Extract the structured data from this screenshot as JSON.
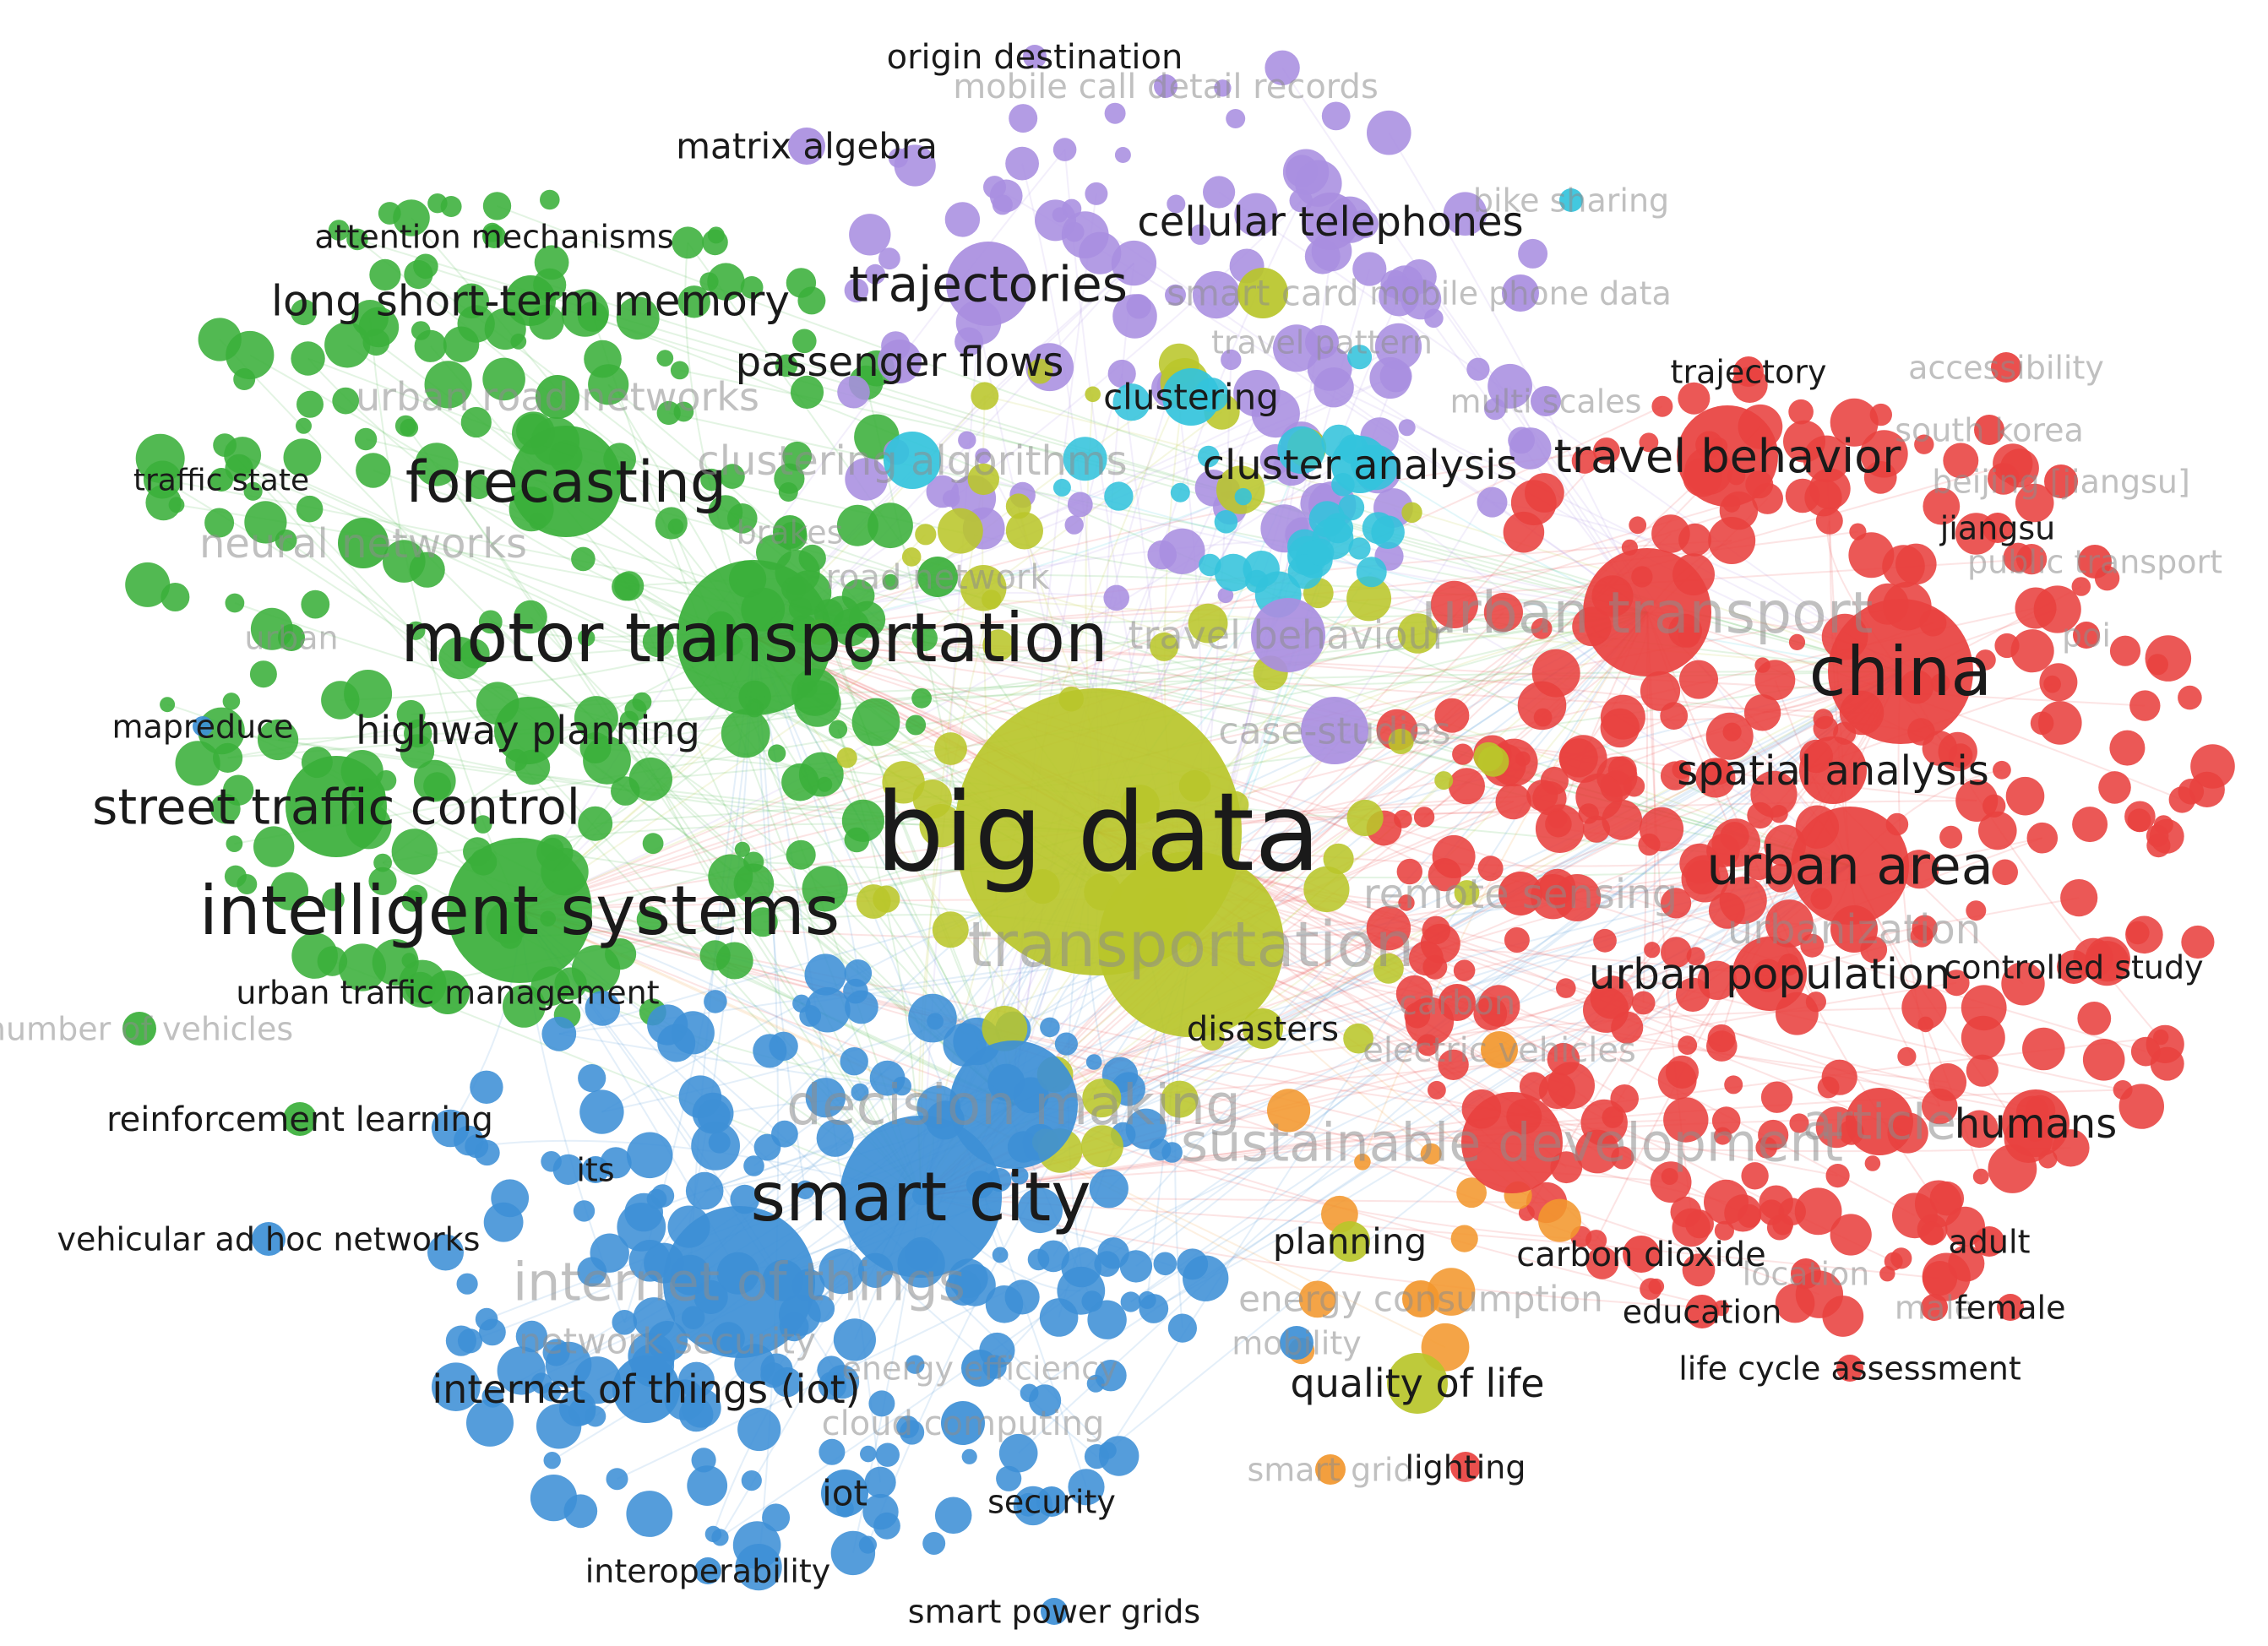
{
  "colors": {
    "green": "#3aaf3a",
    "red": "#e8413f",
    "blue": "#3d8fd6",
    "yellow": "#b9c62a",
    "purple": "#a98ee0",
    "cyan": "#33c3dc",
    "orange": "#f2972e"
  },
  "labels": [
    {
      "text": "origin destination",
      "cluster": "purple",
      "w": 2,
      "dim": false
    },
    {
      "text": "mobile call detail records",
      "cluster": "purple",
      "w": 2,
      "dim": true
    },
    {
      "text": "matrix algebra",
      "cluster": "purple",
      "w": 2,
      "dim": false
    },
    {
      "text": "attention mechanisms",
      "cluster": "green",
      "w": 2,
      "dim": false
    },
    {
      "text": "cellular telephones",
      "cluster": "purple",
      "w": 3,
      "dim": false
    },
    {
      "text": "bike sharing",
      "cluster": "cyan",
      "w": 2,
      "dim": true
    },
    {
      "text": "long short-term memory",
      "cluster": "green",
      "w": 3,
      "dim": false
    },
    {
      "text": "trajectories",
      "cluster": "purple",
      "w": 4,
      "dim": false
    },
    {
      "text": "smart card",
      "cluster": "yellow",
      "w": 2,
      "dim": true
    },
    {
      "text": "mobile phone data",
      "cluster": "purple",
      "w": 2,
      "dim": true
    },
    {
      "text": "passenger flows",
      "cluster": "purple",
      "w": 3,
      "dim": false
    },
    {
      "text": "travel pattern",
      "cluster": "purple",
      "w": 2,
      "dim": true
    },
    {
      "text": "trajectory",
      "cluster": "red",
      "w": 2,
      "dim": false
    },
    {
      "text": "urban road networks",
      "cluster": "green",
      "w": 3,
      "dim": true
    },
    {
      "text": "clustering",
      "cluster": "cyan",
      "w": 3,
      "dim": false
    },
    {
      "text": "multi scales",
      "cluster": "purple",
      "w": 2,
      "dim": true
    },
    {
      "text": "accessibility",
      "cluster": "red",
      "w": 2,
      "dim": true
    },
    {
      "text": "south korea",
      "cluster": "red",
      "w": 2,
      "dim": true
    },
    {
      "text": "traffic state",
      "cluster": "green",
      "w": 2,
      "dim": false
    },
    {
      "text": "forecasting",
      "cluster": "green",
      "w": 5,
      "dim": false
    },
    {
      "text": "clustering algorithms",
      "cluster": "cyan",
      "w": 3,
      "dim": true
    },
    {
      "text": "cluster analysis",
      "cluster": "cyan",
      "w": 3,
      "dim": false
    },
    {
      "text": "travel behavior",
      "cluster": "red",
      "w": 4,
      "dim": false
    },
    {
      "text": "beijing [jiangsu]",
      "cluster": "red",
      "w": 2,
      "dim": true
    },
    {
      "text": "jiangsu",
      "cluster": "red",
      "w": 2,
      "dim": false
    },
    {
      "text": "neural networks",
      "cluster": "green",
      "w": 3,
      "dim": true
    },
    {
      "text": "brakes",
      "cluster": "green",
      "w": 2,
      "dim": true
    },
    {
      "text": "road network",
      "cluster": "green",
      "w": 2,
      "dim": true
    },
    {
      "text": "public transport",
      "cluster": "red",
      "w": 2,
      "dim": true
    },
    {
      "text": "urban transport",
      "cluster": "red",
      "w": 5,
      "dim": true
    },
    {
      "text": "motor transportation",
      "cluster": "green",
      "w": 6,
      "dim": false
    },
    {
      "text": "urban",
      "cluster": "green",
      "w": 2,
      "dim": true
    },
    {
      "text": "travel behaviour",
      "cluster": "purple",
      "w": 3,
      "dim": true
    },
    {
      "text": "china",
      "cluster": "red",
      "w": 6,
      "dim": false
    },
    {
      "text": "poi",
      "cluster": "red",
      "w": 2,
      "dim": true
    },
    {
      "text": "mapreduce",
      "cluster": "blue",
      "w": 2,
      "dim": false
    },
    {
      "text": "highway planning",
      "cluster": "green",
      "w": 3,
      "dim": false
    },
    {
      "text": "case-studies",
      "cluster": "purple",
      "w": 3,
      "dim": true
    },
    {
      "text": "spatial analysis",
      "cluster": "red",
      "w": 3,
      "dim": false
    },
    {
      "text": "street traffic control",
      "cluster": "green",
      "w": 4,
      "dim": false
    },
    {
      "text": "big data",
      "cluster": "yellow",
      "w": 10,
      "dim": false
    },
    {
      "text": "urban area",
      "cluster": "red",
      "w": 4,
      "dim": false
    },
    {
      "text": "intelligent systems",
      "cluster": "green",
      "w": 6,
      "dim": false
    },
    {
      "text": "remote sensing",
      "cluster": "red",
      "w": 3,
      "dim": true
    },
    {
      "text": "transportation",
      "cluster": "yellow",
      "w": 6,
      "dim": true
    },
    {
      "text": "urbanization",
      "cluster": "red",
      "w": 3,
      "dim": true
    },
    {
      "text": "urban population",
      "cluster": "red",
      "w": 3,
      "dim": false
    },
    {
      "text": "controlled study",
      "cluster": "red",
      "w": 2,
      "dim": false
    },
    {
      "text": "urban traffic management",
      "cluster": "green",
      "w": 2,
      "dim": false
    },
    {
      "text": "carbon",
      "cluster": "red",
      "w": 2,
      "dim": true
    },
    {
      "text": "number of vehicles",
      "cluster": "green",
      "w": 2,
      "dim": true
    },
    {
      "text": "disasters",
      "cluster": "yellow",
      "w": 2,
      "dim": false
    },
    {
      "text": "electric vehicles",
      "cluster": "orange",
      "w": 2,
      "dim": true
    },
    {
      "text": "reinforcement learning",
      "cluster": "green",
      "w": 2,
      "dim": false
    },
    {
      "text": "decision making",
      "cluster": "blue",
      "w": 4,
      "dim": true
    },
    {
      "text": "sustainable development",
      "cluster": "red",
      "w": 4,
      "dim": true
    },
    {
      "text": "article",
      "cluster": "red",
      "w": 3,
      "dim": true
    },
    {
      "text": "humans",
      "cluster": "red",
      "w": 3,
      "dim": false
    },
    {
      "text": "its",
      "cluster": "blue",
      "w": 2,
      "dim": false
    },
    {
      "text": "smart city",
      "cluster": "blue",
      "w": 6,
      "dim": false
    },
    {
      "text": "vehicular ad hoc networks",
      "cluster": "blue",
      "w": 2,
      "dim": false
    },
    {
      "text": "planning",
      "cluster": "yellow",
      "w": 2,
      "dim": false
    },
    {
      "text": "carbon dioxide",
      "cluster": "red",
      "w": 2,
      "dim": false
    },
    {
      "text": "adult",
      "cluster": "red",
      "w": 2,
      "dim": false
    },
    {
      "text": "internet of things",
      "cluster": "blue",
      "w": 5,
      "dim": true
    },
    {
      "text": "energy consumption",
      "cluster": "orange",
      "w": 2,
      "dim": true
    },
    {
      "text": "education",
      "cluster": "red",
      "w": 2,
      "dim": false
    },
    {
      "text": "location",
      "cluster": "red",
      "w": 2,
      "dim": true
    },
    {
      "text": "male",
      "cluster": "red",
      "w": 2,
      "dim": true
    },
    {
      "text": "female",
      "cluster": "red",
      "w": 2,
      "dim": false
    },
    {
      "text": "network security",
      "cluster": "blue",
      "w": 2,
      "dim": true
    },
    {
      "text": "energy efficiency",
      "cluster": "blue",
      "w": 2,
      "dim": true
    },
    {
      "text": "mobility",
      "cluster": "blue",
      "w": 2,
      "dim": true
    },
    {
      "text": "life cycle assessment",
      "cluster": "red",
      "w": 2,
      "dim": false
    },
    {
      "text": "internet of things (iot)",
      "cluster": "blue",
      "w": 3,
      "dim": false
    },
    {
      "text": "quality of life",
      "cluster": "yellow",
      "w": 3,
      "dim": false
    },
    {
      "text": "cloud computing",
      "cluster": "blue",
      "w": 2,
      "dim": true
    },
    {
      "text": "smart grid",
      "cluster": "orange",
      "w": 2,
      "dim": true
    },
    {
      "text": "lighting",
      "cluster": "red",
      "w": 2,
      "dim": false
    },
    {
      "text": "iot",
      "cluster": "blue",
      "w": 3,
      "dim": false
    },
    {
      "text": "security",
      "cluster": "blue",
      "w": 2,
      "dim": false
    },
    {
      "text": "interoperability",
      "cluster": "blue",
      "w": 2,
      "dim": false
    },
    {
      "text": "smart power grids",
      "cluster": "blue",
      "w": 2,
      "dim": false
    }
  ]
}
